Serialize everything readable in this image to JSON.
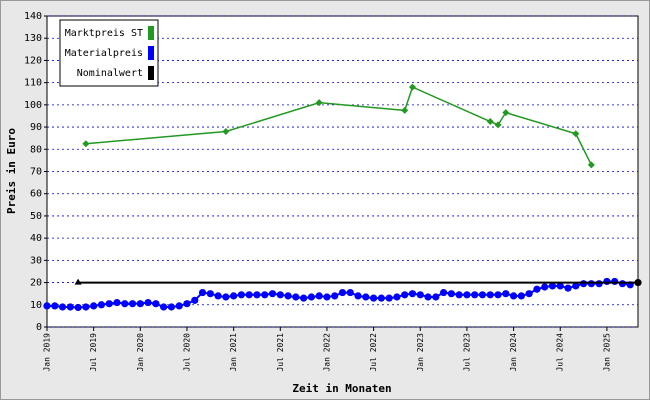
{
  "chart_data": {
    "type": "line",
    "x_label": "Zeit in Monaten",
    "y_label": "Preis in Euro",
    "ylim": [
      0,
      140
    ],
    "yticks": [
      0,
      10,
      20,
      30,
      40,
      50,
      60,
      70,
      80,
      90,
      100,
      110,
      120,
      130,
      140
    ],
    "xlim": [
      "2019-01",
      "2025-05"
    ],
    "xticks": [
      {
        "value": "2019-01",
        "label": "Jan 2019"
      },
      {
        "value": "2019-07",
        "label": "Jul 2019"
      },
      {
        "value": "2020-01",
        "label": "Jan 2020"
      },
      {
        "value": "2020-07",
        "label": "Jul 2020"
      },
      {
        "value": "2021-01",
        "label": "Jan 2021"
      },
      {
        "value": "2021-07",
        "label": "Jul 2021"
      },
      {
        "value": "2022-01",
        "label": "Jan 2022"
      },
      {
        "value": "2022-07",
        "label": "Jul 2022"
      },
      {
        "value": "2023-01",
        "label": "Jan 2023"
      },
      {
        "value": "2023-07",
        "label": "Jul 2023"
      },
      {
        "value": "2024-01",
        "label": "Jan 2024"
      },
      {
        "value": "2024-07",
        "label": "Jul 2024"
      },
      {
        "value": "2025-01",
        "label": "Jan 2025"
      }
    ],
    "grid": true,
    "legend": "top-left",
    "series": [
      {
        "name": "Marktpreis ST",
        "color": "#229922",
        "x": [
          "2019-06",
          "2020-12",
          "2021-12",
          "2022-11",
          "2022-12",
          "2023-10",
          "2023-11",
          "2023-12",
          "2024-09",
          "2024-11"
        ],
        "values": [
          82.5,
          88,
          101,
          97.5,
          108,
          92.5,
          91,
          96.5,
          87,
          73
        ]
      },
      {
        "name": "Materialpreis",
        "color": "#0000ff",
        "x": [
          "2019-01",
          "2019-02",
          "2019-03",
          "2019-04",
          "2019-05",
          "2019-06",
          "2019-07",
          "2019-08",
          "2019-09",
          "2019-10",
          "2019-11",
          "2019-12",
          "2020-01",
          "2020-02",
          "2020-03",
          "2020-04",
          "2020-05",
          "2020-06",
          "2020-07",
          "2020-08",
          "2020-09",
          "2020-10",
          "2020-11",
          "2020-12",
          "2021-01",
          "2021-02",
          "2021-03",
          "2021-04",
          "2021-05",
          "2021-06",
          "2021-07",
          "2021-08",
          "2021-09",
          "2021-10",
          "2021-11",
          "2021-12",
          "2022-01",
          "2022-02",
          "2022-03",
          "2022-04",
          "2022-05",
          "2022-06",
          "2022-07",
          "2022-08",
          "2022-09",
          "2022-10",
          "2022-11",
          "2022-12",
          "2023-01",
          "2023-02",
          "2023-03",
          "2023-04",
          "2023-05",
          "2023-06",
          "2023-07",
          "2023-08",
          "2023-09",
          "2023-10",
          "2023-11",
          "2023-12",
          "2024-01",
          "2024-02",
          "2024-03",
          "2024-04",
          "2024-05",
          "2024-06",
          "2024-07",
          "2024-08",
          "2024-09",
          "2024-10",
          "2024-11",
          "2024-12",
          "2025-01",
          "2025-02",
          "2025-03",
          "2025-04"
        ],
        "values": [
          9.5,
          9.5,
          9,
          9,
          8.8,
          9,
          9.5,
          10,
          10.5,
          11,
          10.5,
          10.5,
          10.5,
          11,
          10.5,
          9,
          9,
          9.5,
          10.5,
          12,
          15.5,
          15,
          14,
          13.5,
          14,
          14.5,
          14.5,
          14.5,
          14.5,
          15,
          14.5,
          14,
          13.5,
          13,
          13.5,
          14,
          13.5,
          14,
          15.5,
          15.5,
          14,
          13.5,
          13,
          13,
          13,
          13.5,
          14.5,
          15,
          14.5,
          13.5,
          13.5,
          15.5,
          15,
          14.5,
          14.5,
          14.5,
          14.5,
          14.5,
          14.5,
          15,
          14,
          14,
          15,
          17,
          18,
          18.5,
          18.5,
          17.5,
          18.5,
          19.5,
          19.5,
          19.5,
          20.5,
          20.5,
          19.5,
          19
        ]
      },
      {
        "name": "Nominalwert",
        "color": "#000000",
        "x": [
          "2019-05",
          "2025-05"
        ],
        "values": [
          20,
          20
        ]
      }
    ]
  }
}
